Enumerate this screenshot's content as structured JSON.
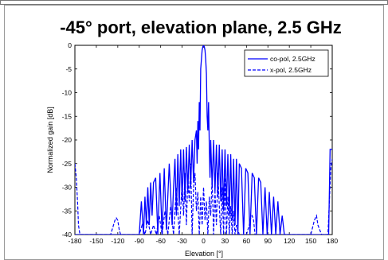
{
  "chart_data": {
    "type": "line",
    "title": "-45° port, elevation plane, 2.5 GHz",
    "xlabel": "Elevation [°]",
    "ylabel": "Normalized gain [dB]",
    "xlim": [
      -180,
      180
    ],
    "ylim": [
      -40,
      0
    ],
    "xticks": [
      "-180",
      "-150",
      "-120",
      "-90",
      "-60",
      "-30",
      "0",
      "30",
      "60",
      "90",
      "120",
      "150",
      "180"
    ],
    "yticks": [
      "0",
      "-5",
      "-10",
      "-15",
      "-20",
      "-25",
      "-30",
      "-35",
      "-40"
    ],
    "grid": false,
    "legend_position": "top-right",
    "series": [
      {
        "name": "co-pol, 2.5GHz",
        "style": "solid",
        "color": "#0000ff",
        "x": [
          -180,
          -176,
          -172,
          -170,
          -168,
          -160,
          -150,
          -140,
          -130,
          -120,
          -110,
          -100,
          -95,
          -93,
          -90,
          -87,
          -84,
          -82,
          -80,
          -78,
          -76,
          -74,
          -72,
          -70,
          -67,
          -64,
          -61,
          -58,
          -55,
          -52,
          -48,
          -44,
          -42,
          -40,
          -38,
          -36,
          -34,
          -32,
          -30,
          -28,
          -26,
          -24,
          -22,
          -20,
          -18,
          -16,
          -14,
          -12,
          -10,
          -9,
          -8,
          -7,
          -6,
          -5,
          -4,
          -3,
          -2,
          -1,
          0,
          1,
          2,
          3,
          4,
          5,
          6,
          7,
          8,
          9,
          10,
          12,
          14,
          16,
          18,
          20,
          22,
          24,
          26,
          28,
          30,
          32,
          34,
          36,
          38,
          40,
          42,
          44,
          46,
          48,
          50,
          53,
          56,
          59,
          62,
          65,
          68,
          71,
          74,
          77,
          80,
          83,
          86,
          89,
          92,
          95,
          98,
          101,
          104,
          107,
          110,
          113,
          116,
          119,
          122,
          125,
          130,
          140,
          150,
          160,
          170,
          175,
          177,
          180
        ],
        "y": [
          -40,
          -40,
          -40,
          -40,
          -40,
          -40,
          -40,
          -40,
          -40,
          -40,
          -40,
          -40,
          -40,
          -40,
          -40,
          -33,
          -40,
          -32,
          -38,
          -30,
          -38,
          -29,
          -36,
          -29,
          -28,
          -40,
          -27,
          -40,
          -26,
          -39,
          -25,
          -38,
          -30,
          -24,
          -36,
          -23,
          -34,
          -22,
          -33,
          -22,
          -33,
          -21.5,
          -31,
          -21,
          -30,
          -20,
          -29,
          -20,
          -18,
          -25,
          -16,
          -22,
          -12,
          -18,
          -5,
          -3,
          -1,
          -0.3,
          0,
          -0.3,
          -1,
          -3,
          -6,
          -15,
          -18,
          -12,
          -21,
          -28,
          -20,
          -30,
          -20,
          -31,
          -21,
          -32,
          -21,
          -33,
          -22,
          -35,
          -22,
          -34,
          -23,
          -36,
          -23,
          -37,
          -24,
          -38,
          -24,
          -40,
          -25,
          -26,
          -40,
          -26,
          -27,
          -40,
          -27,
          -28,
          -40,
          -28,
          -29,
          -40,
          -30,
          -40,
          -31,
          -40,
          -32,
          -40,
          -33,
          -40,
          -36,
          -40,
          -40,
          -40,
          -40,
          -40,
          -40,
          -40,
          -40,
          -40,
          -40,
          -40,
          -22,
          -22
        ]
      },
      {
        "name": "x-pol, 2.5GHz",
        "style": "dashed",
        "color": "#0000ff",
        "x": [
          -180,
          -178,
          -176,
          -175,
          -173,
          -172,
          -165,
          -155,
          -150,
          -145,
          -140,
          -135,
          -132,
          -130,
          -128,
          -126,
          -124,
          -122,
          -120,
          -118,
          -116,
          -110,
          -100,
          -90,
          -86,
          -82,
          -78,
          -74,
          -70,
          -66,
          -62,
          -58,
          -54,
          -50,
          -46,
          -42,
          -38,
          -34,
          -30,
          -28,
          -26,
          -24,
          -22,
          -20,
          -18,
          -16,
          -14,
          -12,
          -10,
          -8,
          -6,
          -4,
          -2,
          0,
          2,
          4,
          6,
          8,
          10,
          12,
          14,
          16,
          18,
          20,
          22,
          24,
          26,
          28,
          30,
          32,
          34,
          36,
          38,
          40,
          42,
          44,
          46,
          50,
          55,
          60,
          64,
          66,
          68,
          70,
          72,
          75,
          80,
          85,
          90,
          92,
          94,
          96,
          98,
          100,
          103,
          106,
          109,
          112,
          115,
          120,
          130,
          140,
          150,
          155,
          158,
          160,
          165,
          170,
          174,
          178,
          180
        ],
        "y": [
          -25,
          -28,
          -34,
          -38,
          -40,
          -40,
          -40,
          -40,
          -40,
          -40,
          -40,
          -40,
          -40,
          -40,
          -39,
          -38,
          -37,
          -36.5,
          -37,
          -39,
          -40,
          -40,
          -40,
          -40,
          -38,
          -40,
          -37,
          -40,
          -38,
          -40,
          -36,
          -40,
          -35,
          -40,
          -34,
          -40,
          -30,
          -40,
          -29,
          -36,
          -27,
          -38,
          -28,
          -33,
          -25,
          -40,
          -30,
          -27,
          -35,
          -31,
          -40,
          -32,
          -38,
          -30,
          -37,
          -33,
          -40,
          -32,
          -36,
          -28,
          -40,
          -31,
          -38,
          -27,
          -34,
          -40,
          -30,
          -40,
          -28,
          -40,
          -32,
          -40,
          -34,
          -40,
          -35,
          -40,
          -38,
          -40,
          -40,
          -40,
          -38,
          -36.5,
          -36,
          -37,
          -40,
          -40,
          -40,
          -40,
          -40,
          -40,
          -40,
          -40,
          -40,
          -40,
          -40,
          -40,
          -40,
          -40,
          -40,
          -40,
          -40,
          -40,
          -40,
          -37,
          -36,
          -38,
          -40,
          -40,
          -40,
          -26,
          -24
        ]
      }
    ]
  }
}
